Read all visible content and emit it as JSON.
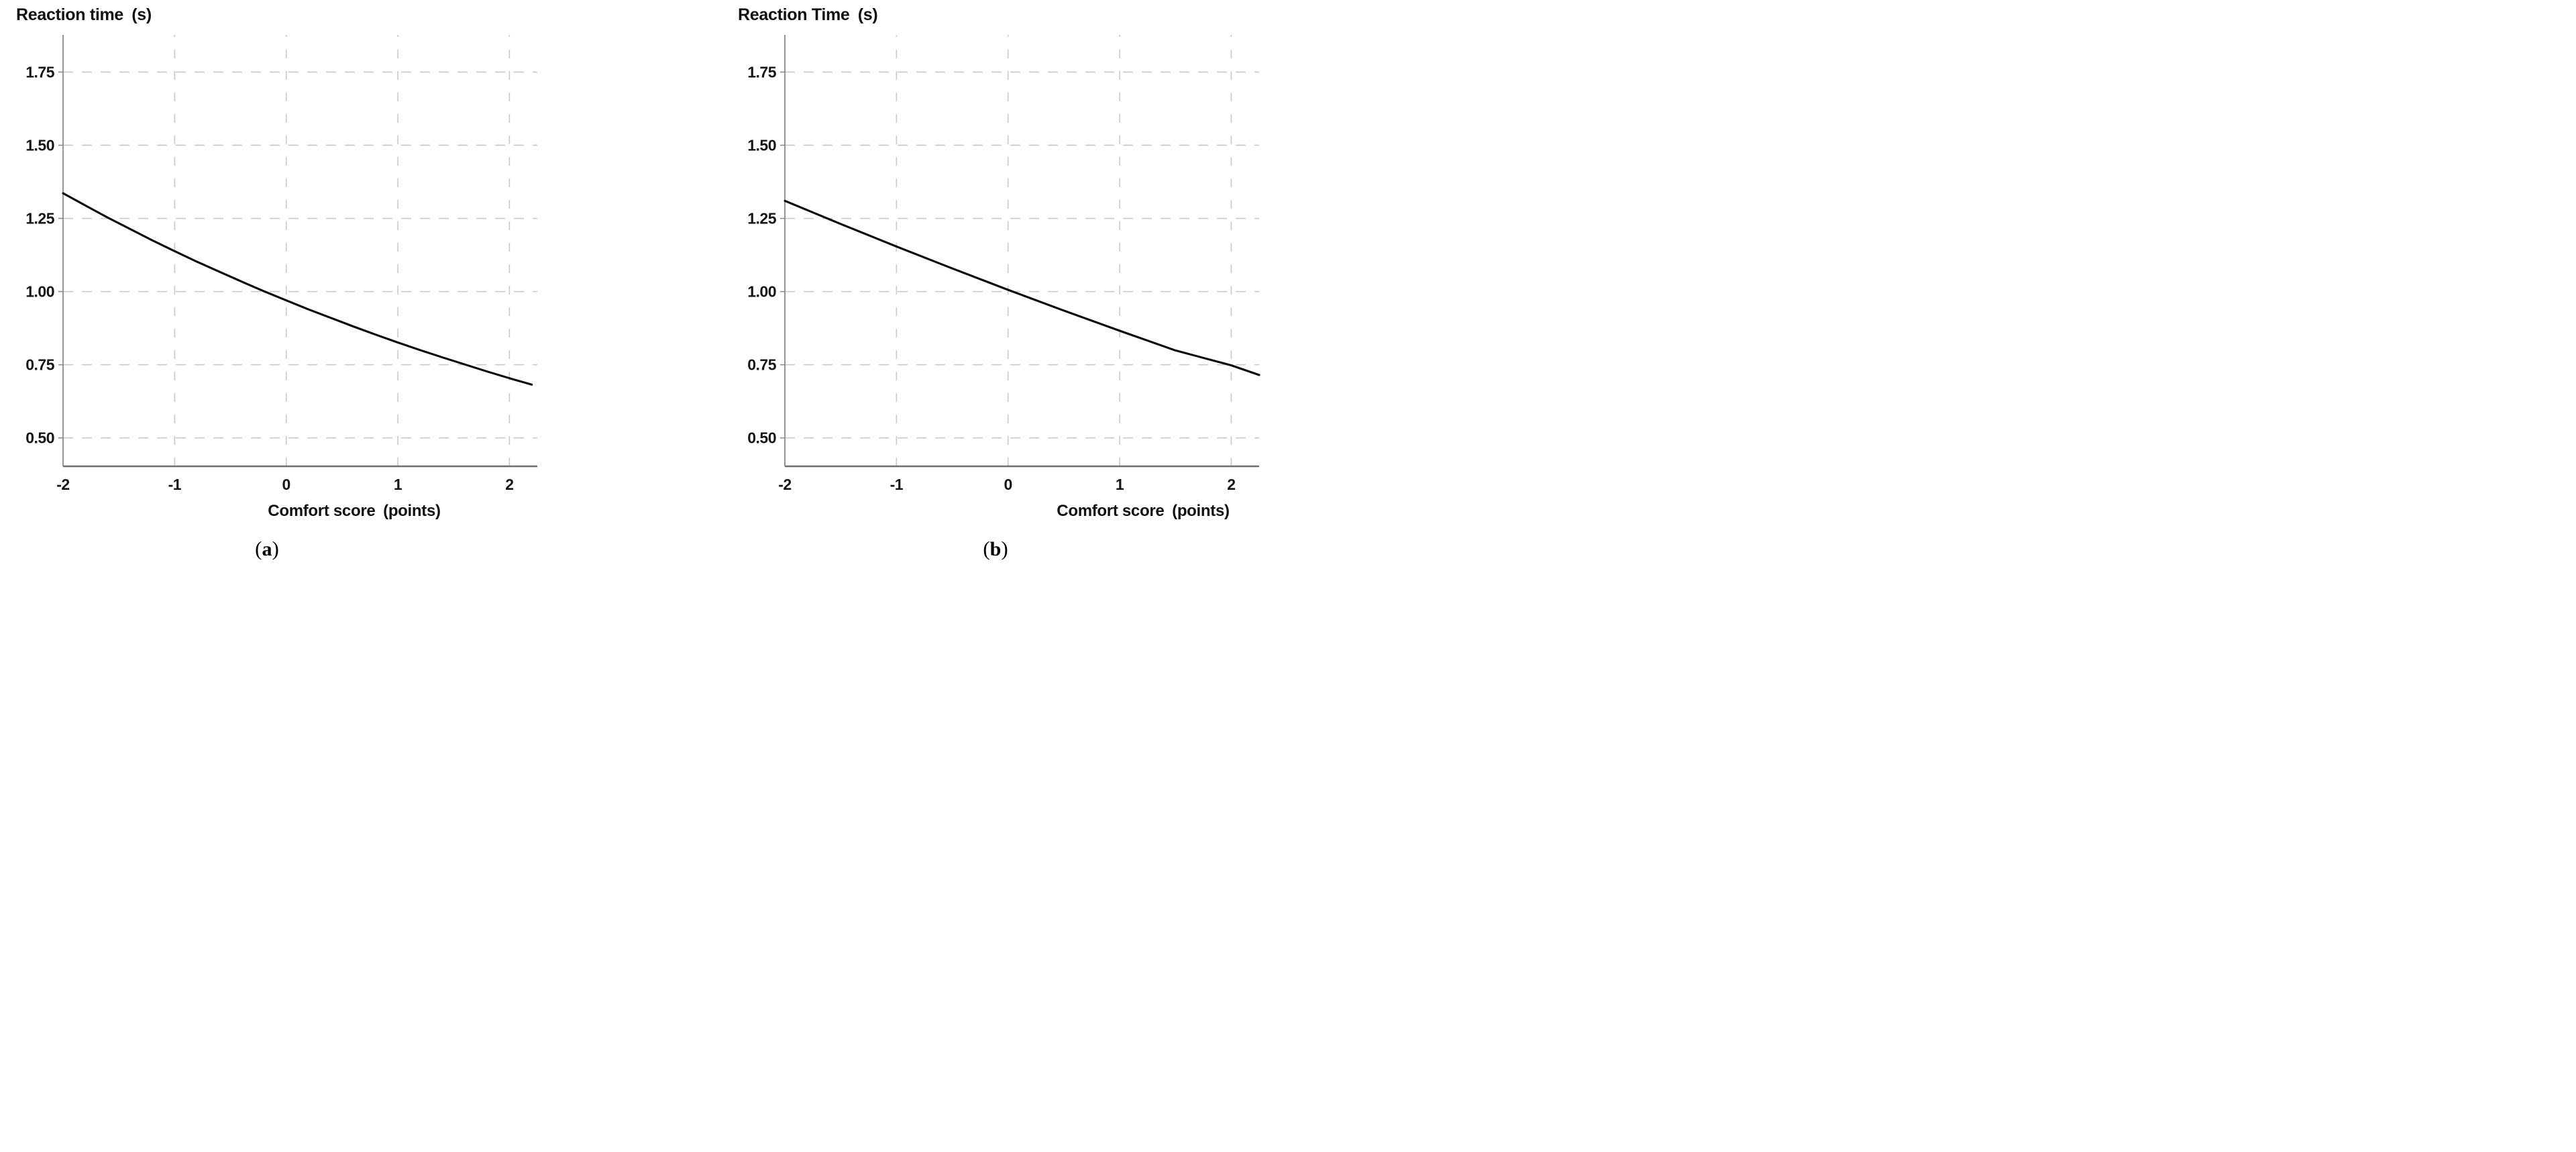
{
  "page": {
    "background": "#ffffff"
  },
  "styles": {
    "line_color": "#0a0a0a",
    "axis_color": "#6e6e6e",
    "y_axis_color": "#8a8a8a",
    "grid_color": "#c8c8c8",
    "text_color": "#151515"
  },
  "chart_data": [
    {
      "type": "line",
      "panel": "a",
      "title": "Reaction time (s)",
      "xlabel": "Comfort score (points)",
      "caption": {
        "open": "(",
        "letter": "a",
        "close": ")"
      },
      "x_tick_labels": [
        "-2",
        "-1",
        "0",
        "1",
        "2"
      ],
      "x_tick_values": [
        -2,
        -1,
        0,
        1,
        2
      ],
      "y_tick_labels": [
        "1.75",
        "1.50",
        "1.25",
        "1.00",
        "0.75",
        "0.50"
      ],
      "y_tick_values": [
        1.75,
        1.5,
        1.25,
        1.0,
        0.75,
        0.5
      ],
      "xlim": [
        -2,
        2.25
      ],
      "ylim": [
        0.403,
        1.877
      ],
      "grid": true,
      "legend": "none",
      "series": [
        {
          "name": "fitted-curve",
          "x": [
            -2,
            -1.8,
            -1.6,
            -1.4,
            -1.2,
            -1.0,
            -0.8,
            -0.6,
            -0.4,
            -0.2,
            0,
            0.2,
            0.4,
            0.6,
            0.8,
            1.0,
            1.2,
            1.4,
            1.6,
            1.8,
            2.0,
            2.2
          ],
          "y": [
            1.336,
            1.294,
            1.253,
            1.214,
            1.175,
            1.138,
            1.102,
            1.068,
            1.034,
            1.001,
            0.97,
            0.939,
            0.91,
            0.881,
            0.853,
            0.826,
            0.8,
            0.775,
            0.751,
            0.727,
            0.704,
            0.682
          ]
        }
      ]
    },
    {
      "type": "line",
      "panel": "b",
      "title": "Reaction Time (s)",
      "xlabel": "Comfort score (points)",
      "caption": {
        "open": "(",
        "letter": "b",
        "close": ")"
      },
      "x_tick_labels": [
        "-2",
        "-1",
        "0",
        "1",
        "2"
      ],
      "x_tick_values": [
        -2,
        -1,
        0,
        1,
        2
      ],
      "y_tick_labels": [
        "1.75",
        "1.50",
        "1.25",
        "1.00",
        "0.75",
        "0.50"
      ],
      "y_tick_values": [
        1.75,
        1.5,
        1.25,
        1.0,
        0.75,
        0.5
      ],
      "xlim": [
        -2,
        2.25
      ],
      "ylim": [
        0.403,
        1.877
      ],
      "grid": true,
      "legend": "none",
      "series": [
        {
          "name": "fitted-line",
          "x": [
            -2,
            -1.5,
            -1.0,
            -0.5,
            0,
            0.5,
            1.0,
            1.5,
            2.0,
            2.25
          ],
          "y": [
            1.31,
            1.231,
            1.154,
            1.079,
            1.006,
            0.935,
            0.866,
            0.799,
            0.748,
            0.715
          ]
        }
      ]
    }
  ]
}
